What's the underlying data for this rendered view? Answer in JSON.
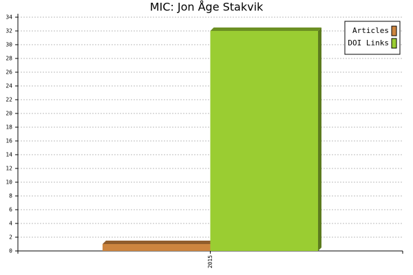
{
  "chart_data": {
    "type": "bar",
    "title": "MIC: Jon Åge Stakvik",
    "categories": [
      "2015"
    ],
    "series": [
      {
        "name": "Articles",
        "color": "#cd853f",
        "values": [
          1
        ]
      },
      {
        "name": "DOI Links",
        "color": "#9acd32",
        "values": [
          32
        ]
      }
    ],
    "ylim": [
      0,
      34
    ],
    "yticks": [
      0,
      2,
      4,
      6,
      8,
      10,
      12,
      14,
      16,
      18,
      20,
      22,
      24,
      26,
      28,
      30,
      32,
      34
    ],
    "grid": true,
    "legend": "top-right"
  }
}
